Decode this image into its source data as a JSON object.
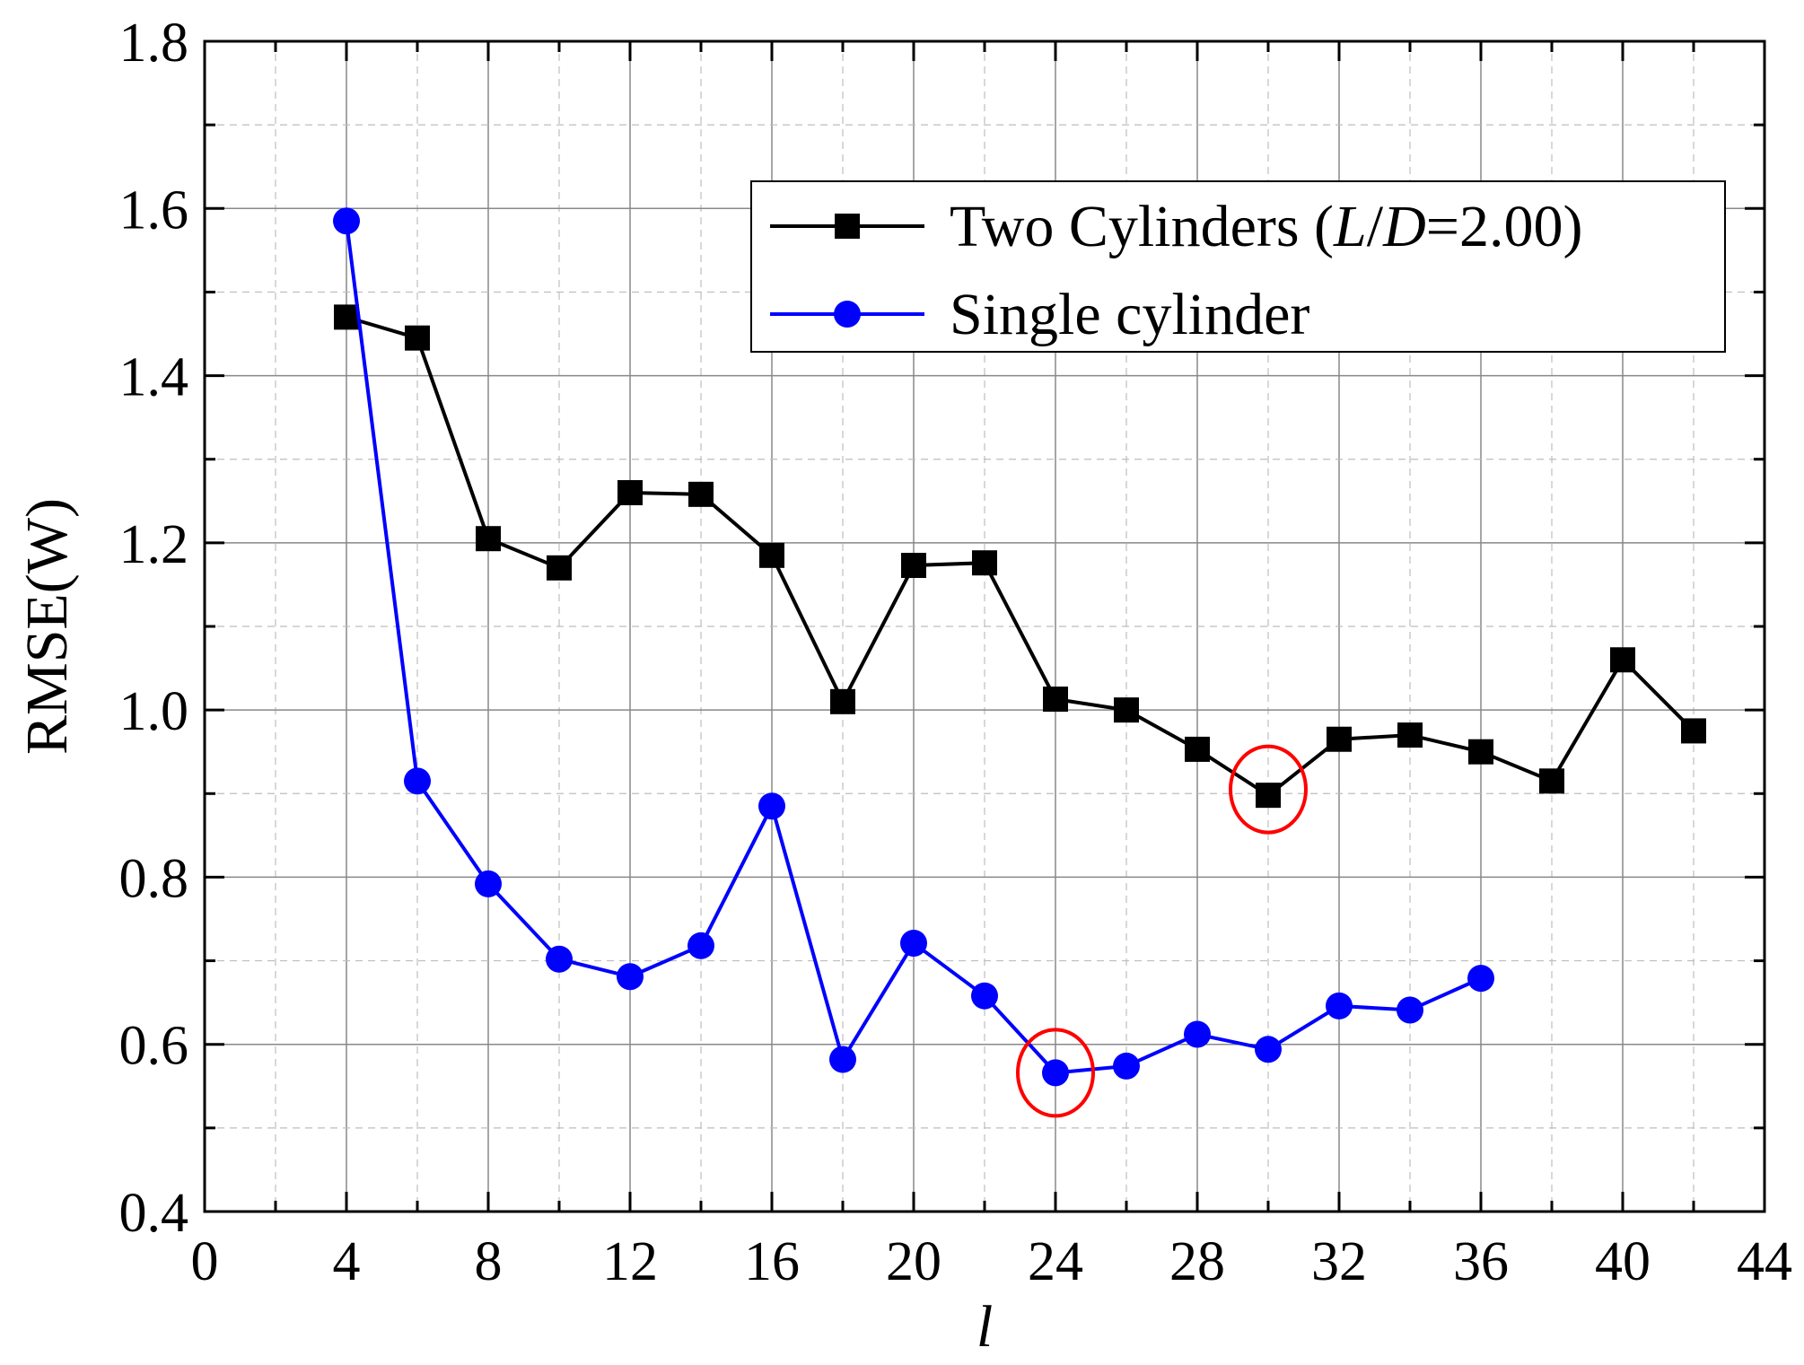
{
  "chart_data": {
    "type": "line",
    "xlabel": "l",
    "ylabel": "RMSE(W)",
    "xlim": [
      0,
      44
    ],
    "ylim": [
      0.4,
      1.8
    ],
    "x_ticks": [
      0,
      4,
      8,
      12,
      16,
      20,
      24,
      28,
      32,
      36,
      40,
      44
    ],
    "y_ticks": [
      0.4,
      0.6,
      0.8,
      1.0,
      1.2,
      1.4,
      1.6,
      1.8
    ],
    "x_tick_labels": [
      "0",
      "4",
      "8",
      "12",
      "16",
      "20",
      "24",
      "28",
      "32",
      "36",
      "40",
      "44"
    ],
    "y_tick_labels": [
      "0.4",
      "0.6",
      "0.8",
      "1.0",
      "1.2",
      "1.4",
      "1.6",
      "1.8"
    ],
    "grid": true,
    "legend_position": "top-right",
    "series": [
      {
        "name_parts": [
          "Two Cylinders (",
          "L",
          "/",
          "D",
          "=2.00)"
        ],
        "color": "#000000",
        "marker": "square",
        "x": [
          4,
          6,
          8,
          10,
          12,
          14,
          16,
          18,
          20,
          22,
          24,
          26,
          28,
          30,
          32,
          34,
          36,
          38,
          40,
          42
        ],
        "y": [
          1.47,
          1.445,
          1.205,
          1.17,
          1.26,
          1.258,
          1.185,
          1.01,
          1.173,
          1.176,
          1.013,
          1.0,
          0.953,
          0.898,
          0.965,
          0.97,
          0.95,
          0.915,
          1.06,
          0.975
        ]
      },
      {
        "name": "Single cylinder",
        "color": "#0000ff",
        "marker": "circle",
        "x": [
          4,
          6,
          8,
          10,
          12,
          14,
          16,
          18,
          20,
          22,
          24,
          26,
          28,
          30,
          32,
          34,
          36
        ],
        "y": [
          1.585,
          0.915,
          0.792,
          0.702,
          0.681,
          0.718,
          0.885,
          0.582,
          0.721,
          0.658,
          0.566,
          0.574,
          0.612,
          0.594,
          0.646,
          0.641,
          0.679
        ]
      }
    ],
    "highlights": [
      {
        "x": 30,
        "y": 0.905,
        "color": "#ff0000"
      },
      {
        "x": 24,
        "y": 0.566,
        "color": "#ff0000"
      }
    ]
  }
}
